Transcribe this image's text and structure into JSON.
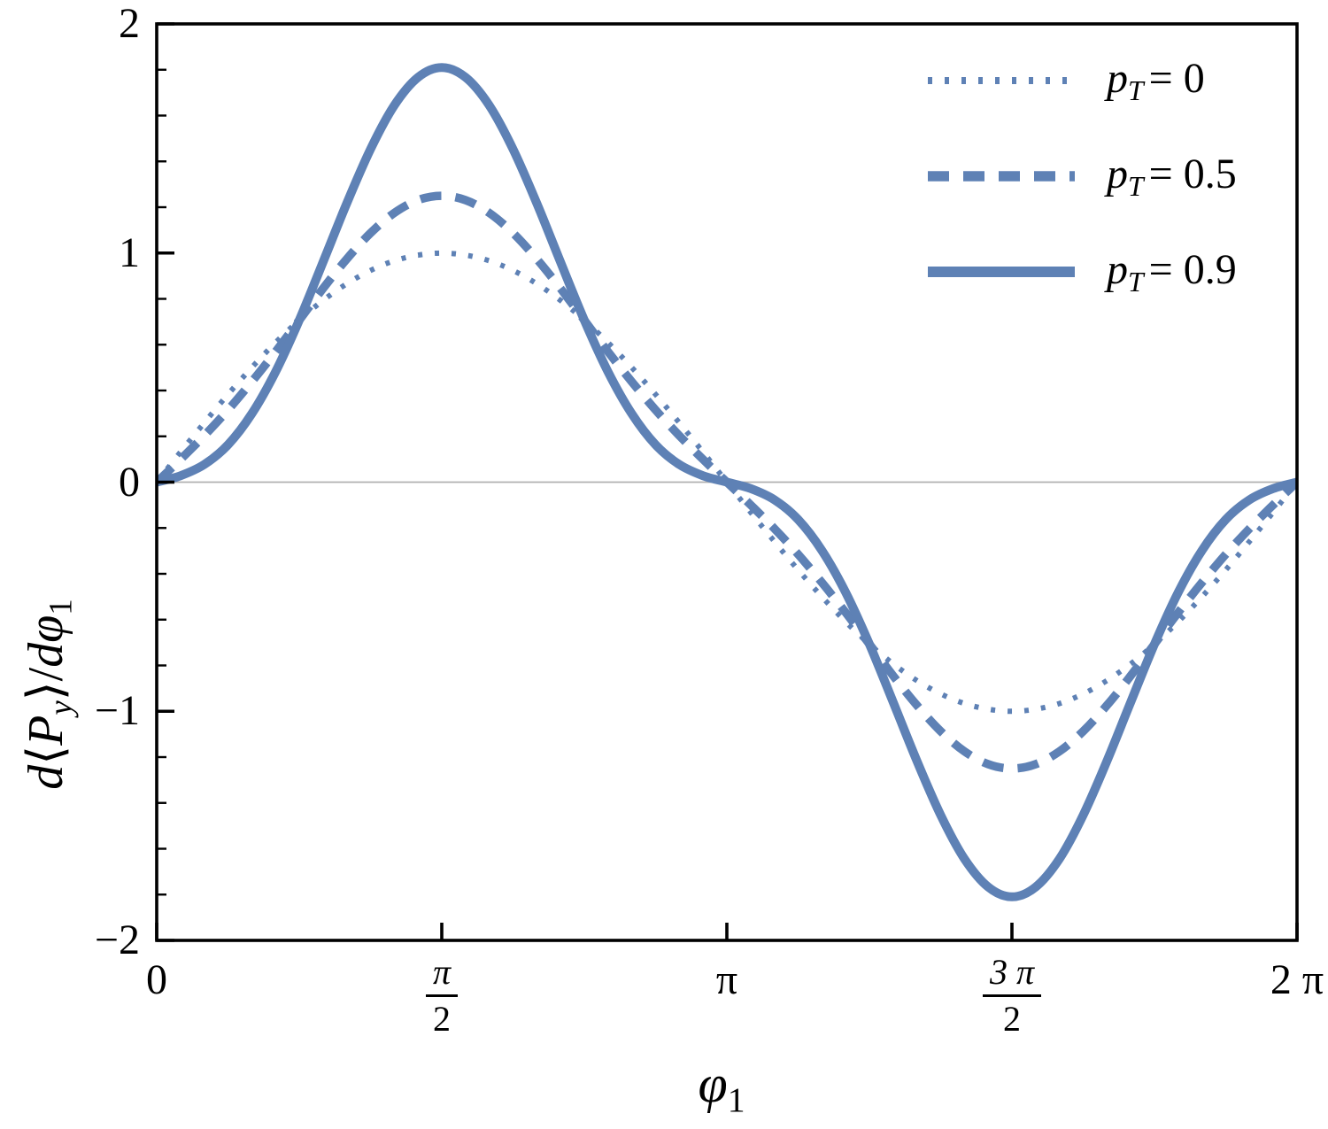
{
  "figure": {
    "background": "#ffffff",
    "frame_color": "#000000",
    "zero_line_color": "#b0b0b0",
    "accent_color": "#5e81b5"
  },
  "y_axis_label": {
    "d1": "d",
    "langle": "⟨",
    "P": "P",
    "sub_y": "y",
    "rangle": "⟩",
    "slash": "/",
    "d2": "d",
    "phi": "φ",
    "sub_1": "1"
  },
  "x_axis_label": {
    "phi": "φ",
    "sub": "1"
  },
  "legend": {
    "position": "top-right",
    "items": [
      {
        "symbol": "p",
        "subscript": "T",
        "value": "= 0",
        "line_style": "dotted"
      },
      {
        "symbol": "p",
        "subscript": "T",
        "value": "= 0.5",
        "line_style": "dashed"
      },
      {
        "symbol": "p",
        "subscript": "T",
        "value": "= 0.9",
        "line_style": "solid"
      }
    ]
  },
  "chart_data": {
    "type": "line",
    "title": "",
    "xlabel": "φ1",
    "ylabel": "d⟨Py⟩/dφ1",
    "xlim": [
      0,
      6.2832
    ],
    "ylim": [
      -2,
      2
    ],
    "grid": "horizontal-zero-line-only",
    "legend_position": "top-right",
    "x_ticks": [
      {
        "value": 0,
        "label": "0"
      },
      {
        "value": 1.5708,
        "num": "π",
        "den": "2"
      },
      {
        "value": 3.1416,
        "label": "π",
        "greek": true
      },
      {
        "value": 4.7124,
        "num": "3 π",
        "den": "2"
      },
      {
        "value": 6.2832,
        "label": "2 π",
        "greek": true
      }
    ],
    "y_ticks": [
      {
        "value": 2,
        "label": "2"
      },
      {
        "value": 1,
        "label": "1"
      },
      {
        "value": 0,
        "label": "0"
      },
      {
        "value": -1,
        "label": "−1"
      },
      {
        "value": -2,
        "label": "−2"
      }
    ],
    "y_minor_step": 0.2,
    "x": [
      0,
      0.1309,
      0.2618,
      0.3927,
      0.5236,
      0.6545,
      0.7854,
      0.9163,
      1.0472,
      1.1781,
      1.309,
      1.4399,
      1.5708,
      1.7017,
      1.8326,
      1.9635,
      2.0944,
      2.2253,
      2.3562,
      2.4871,
      2.618,
      2.7489,
      2.8798,
      3.0107,
      3.1416,
      3.2725,
      3.4034,
      3.5343,
      3.6652,
      3.7961,
      3.927,
      4.0579,
      4.1888,
      4.3197,
      4.4506,
      4.5815,
      4.7124,
      4.8433,
      4.9742,
      5.1051,
      5.236,
      5.3669,
      5.4978,
      5.6287,
      5.7596,
      5.8905,
      6.0214,
      6.1523,
      6.2832
    ],
    "series": [
      {
        "name": "pT = 0",
        "line_style": "dotted",
        "color": "#5e81b5",
        "amplitude": 1.0,
        "values": [
          0,
          0.131,
          0.259,
          0.383,
          0.5,
          0.609,
          0.707,
          0.793,
          0.866,
          0.924,
          0.966,
          0.991,
          1,
          0.991,
          0.966,
          0.924,
          0.866,
          0.793,
          0.707,
          0.609,
          0.5,
          0.383,
          0.259,
          0.131,
          0,
          -0.131,
          -0.259,
          -0.383,
          -0.5,
          -0.609,
          -0.707,
          -0.793,
          -0.866,
          -0.924,
          -0.966,
          -0.991,
          -1,
          -0.991,
          -0.966,
          -0.924,
          -0.866,
          -0.793,
          -0.707,
          -0.609,
          -0.5,
          -0.383,
          -0.259,
          -0.131,
          0
        ]
      },
      {
        "name": "pT = 0.5",
        "line_style": "dashed",
        "color": "#5e81b5",
        "amplitude": 1.25,
        "values": [
          0,
          0.099,
          0.203,
          0.315,
          0.438,
          0.569,
          0.707,
          0.845,
          0.974,
          1.087,
          1.175,
          1.231,
          1.25,
          1.231,
          1.175,
          1.087,
          0.974,
          0.845,
          0.707,
          0.569,
          0.438,
          0.315,
          0.203,
          0.099,
          0,
          -0.099,
          -0.203,
          -0.315,
          -0.438,
          -0.569,
          -0.707,
          -0.845,
          -0.974,
          -1.087,
          -1.175,
          -1.231,
          -1.25,
          -1.231,
          -1.175,
          -1.087,
          -0.974,
          -0.845,
          -0.707,
          -0.569,
          -0.438,
          -0.315,
          -0.203,
          -0.099,
          0
        ]
      },
      {
        "name": "pT = 0.9",
        "line_style": "solid",
        "color": "#5e81b5",
        "amplitude": 1.81,
        "values": [
          0,
          0.028,
          0.077,
          0.163,
          0.298,
          0.481,
          0.707,
          0.96,
          1.217,
          1.453,
          1.644,
          1.767,
          1.81,
          1.767,
          1.644,
          1.453,
          1.217,
          0.96,
          0.707,
          0.481,
          0.298,
          0.163,
          0.077,
          0.028,
          0,
          -0.028,
          -0.077,
          -0.163,
          -0.298,
          -0.481,
          -0.707,
          -0.96,
          -1.217,
          -1.453,
          -1.644,
          -1.767,
          -1.81,
          -1.767,
          -1.644,
          -1.453,
          -1.217,
          -0.96,
          -0.707,
          -0.481,
          -0.298,
          -0.163,
          -0.077,
          -0.028,
          0
        ]
      }
    ]
  }
}
